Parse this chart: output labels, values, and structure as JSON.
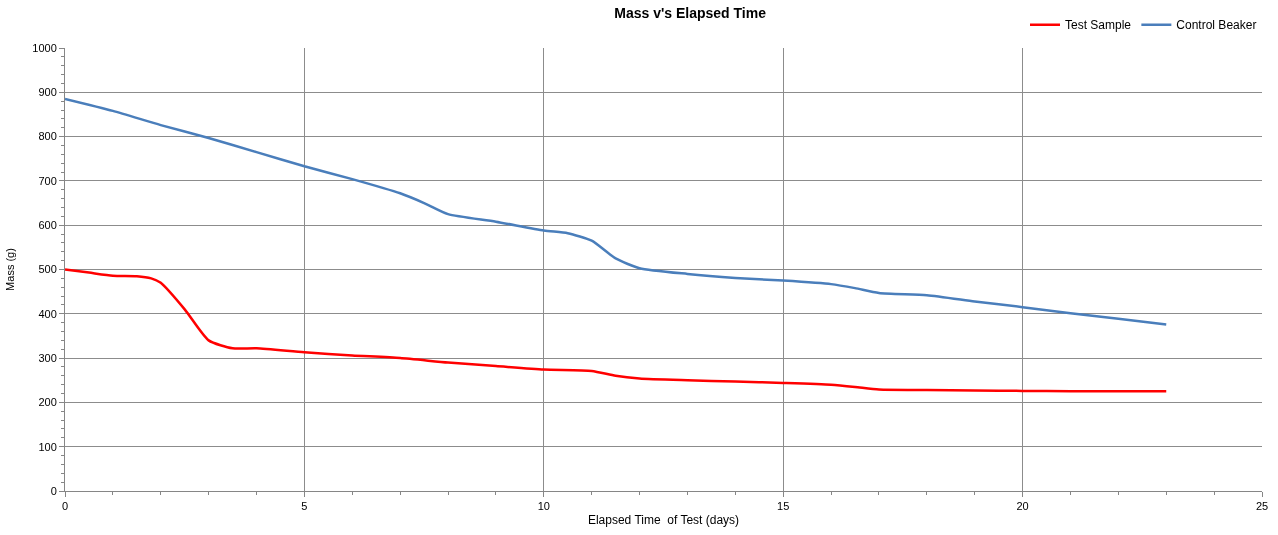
{
  "chart_data": {
    "type": "line",
    "title": "Mass v's Elapsed Time",
    "xlabel": "Elapsed Time  of Test (days)",
    "ylabel": "Mass (g)",
    "xlim": [
      0,
      25
    ],
    "xticks": [
      0,
      5,
      10,
      15,
      20,
      25
    ],
    "ylim": [
      0,
      1000
    ],
    "yticks": [
      0,
      100,
      200,
      300,
      400,
      500,
      600,
      700,
      800,
      900,
      1000
    ],
    "grid": true,
    "legend": "top right",
    "marker": "none",
    "line_style": "solid",
    "series": [
      {
        "name": "Test Sample",
        "color": "#ff0000",
        "x": [
          0,
          0.5,
          1,
          1.5,
          1.8,
          2,
          2.5,
          3,
          3.5,
          4,
          5,
          6,
          7,
          8,
          9,
          10,
          11,
          11.5,
          12,
          13,
          14,
          15,
          16,
          16.5,
          17,
          18,
          19,
          20,
          21,
          22,
          23
        ],
        "values": [
          500,
          493,
          486,
          485,
          480,
          470,
          410,
          340,
          322,
          322,
          313,
          306,
          300,
          290,
          282,
          274,
          271,
          260,
          254,
          250,
          247,
          244,
          240,
          235,
          229,
          228,
          227,
          226,
          225,
          225,
          225
        ]
      },
      {
        "name": "Control Beaker",
        "color": "#4a7ebb",
        "x": [
          0,
          1,
          2,
          3,
          4,
          5,
          6,
          7,
          7.5,
          8,
          9,
          10,
          10.5,
          11,
          11.5,
          12,
          13,
          14,
          15,
          16,
          16.5,
          17,
          18,
          19,
          20,
          21,
          22,
          23
        ],
        "values": [
          885,
          858,
          826,
          797,
          765,
          733,
          704,
          672,
          650,
          625,
          608,
          588,
          582,
          565,
          525,
          503,
          490,
          481,
          475,
          467,
          458,
          447,
          442,
          428,
          415,
          401,
          389,
          376
        ]
      }
    ]
  }
}
